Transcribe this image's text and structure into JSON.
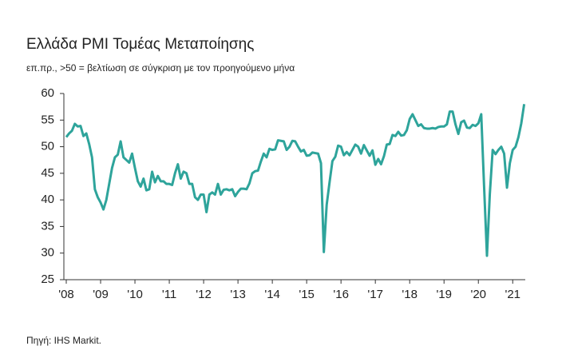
{
  "chart_data": {
    "type": "line",
    "title": "Ελλάδα PMI Τομέας Μεταποίησης",
    "subtitle": "επ.πρ., >50 = βελτίωση σε σύγκριση με τον προηγούμενο μήνα",
    "source": "Πηγή: IHS Markit.",
    "categories": [
      "'08",
      null,
      null,
      null,
      null,
      null,
      null,
      null,
      null,
      null,
      null,
      null,
      "'09",
      null,
      null,
      null,
      null,
      null,
      null,
      null,
      null,
      null,
      null,
      null,
      "'10",
      null,
      null,
      null,
      null,
      null,
      null,
      null,
      null,
      null,
      null,
      null,
      "'11",
      null,
      null,
      null,
      null,
      null,
      null,
      null,
      null,
      null,
      null,
      null,
      "'12",
      null,
      null,
      null,
      null,
      null,
      null,
      null,
      null,
      null,
      null,
      null,
      "'13",
      null,
      null,
      null,
      null,
      null,
      null,
      null,
      null,
      null,
      null,
      null,
      "'14",
      null,
      null,
      null,
      null,
      null,
      null,
      null,
      null,
      null,
      null,
      null,
      "'15",
      null,
      null,
      null,
      null,
      null,
      null,
      null,
      null,
      null,
      null,
      null,
      "'16",
      null,
      null,
      null,
      null,
      null,
      null,
      null,
      null,
      null,
      null,
      null,
      "'17",
      null,
      null,
      null,
      null,
      null,
      null,
      null,
      null,
      null,
      null,
      null,
      "'18",
      null,
      null,
      null,
      null,
      null,
      null,
      null,
      null,
      null,
      null,
      null,
      "'19",
      null,
      null,
      null,
      null,
      null,
      null,
      null,
      null,
      null,
      null,
      null,
      "'20",
      null,
      null,
      null,
      null,
      null,
      null,
      null,
      null,
      null,
      null,
      null,
      "'21",
      null,
      null,
      null,
      null
    ],
    "color": "#2ea49b",
    "values": [
      51.8,
      52.5,
      53.0,
      54.3,
      53.8,
      53.9,
      52.0,
      52.5,
      50.5,
      48.0,
      42.0,
      40.5,
      39.5,
      38.2,
      40.0,
      43.0,
      46.0,
      48.0,
      48.5,
      51.0,
      48.0,
      47.5,
      47.0,
      48.7,
      46.0,
      43.5,
      42.5,
      44.0,
      41.8,
      42.0,
      45.3,
      43.3,
      44.5,
      43.5,
      43.5,
      43.0,
      43.0,
      42.8,
      45.0,
      46.7,
      44.0,
      45.3,
      45.0,
      43.0,
      43.0,
      40.5,
      40.0,
      41.0,
      41.0,
      37.7,
      41.0,
      41.4,
      41.0,
      43.0,
      41.0,
      41.9,
      42.0,
      41.8,
      42.0,
      40.7,
      41.5,
      42.1,
      42.1,
      42.0,
      43.1,
      45.0,
      45.4,
      45.5,
      47.2,
      48.7,
      48.0,
      49.6,
      49.4,
      49.5,
      51.2,
      51.1,
      51.0,
      49.4,
      50.0,
      51.1,
      51.0,
      50.0,
      49.1,
      49.4,
      48.3,
      48.4,
      48.9,
      48.8,
      48.7,
      46.9,
      30.2,
      39.1,
      43.3,
      47.3,
      48.1,
      50.2,
      50.0,
      48.4,
      49.0,
      48.4,
      49.4,
      50.4,
      50.0,
      48.7,
      50.3,
      49.3,
      48.3,
      49.3,
      46.6,
      47.7,
      46.7,
      48.2,
      50.4,
      50.5,
      52.2,
      52.0,
      52.8,
      52.1,
      52.2,
      53.1,
      55.2,
      56.1,
      55.0,
      53.9,
      54.2,
      53.5,
      53.4,
      53.4,
      53.5,
      53.4,
      53.7,
      53.8,
      53.8,
      54.2,
      56.6,
      56.6,
      54.2,
      52.4,
      54.6,
      54.9,
      53.6,
      53.5,
      54.1,
      53.9,
      54.4,
      56.1,
      42.5,
      29.5,
      41.1,
      49.4,
      48.6,
      49.4,
      50.0,
      48.7,
      42.3,
      46.9,
      49.4,
      50.0,
      51.8,
      54.4,
      58.0
    ],
    "ylim": [
      25,
      60
    ],
    "yticks": [
      25,
      30,
      35,
      40,
      45,
      50,
      55,
      60
    ],
    "grid": false
  }
}
